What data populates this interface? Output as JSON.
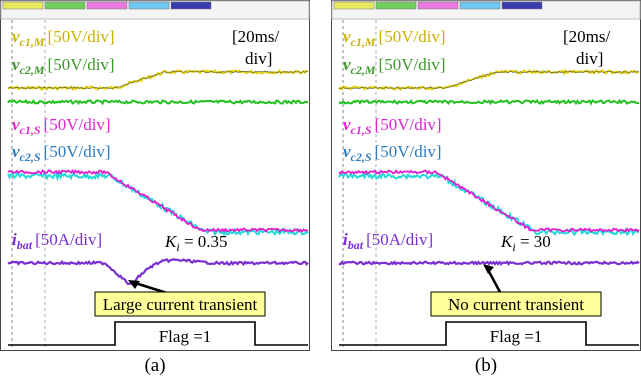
{
  "panels": [
    {
      "labels": [
        {
          "symbol": "v",
          "subscript": "c1,M",
          "scale": "[50V/div]"
        },
        {
          "symbol": "v",
          "subscript": "c2,M",
          "scale": "[50V/div]"
        },
        {
          "symbol": "v",
          "subscript": "c1,S",
          "scale": "[50V/div]"
        },
        {
          "symbol": "v",
          "subscript": "c2,S",
          "scale": "[50V/div]"
        },
        {
          "symbol": "i",
          "subscript": "bat",
          "scale": "[50A/div]"
        }
      ],
      "time_div": [
        "[20ms/",
        "div]"
      ],
      "gain": {
        "symbol": "K",
        "subscript": "i",
        "text": " = 0.35"
      },
      "callout": "Large current transient",
      "flag": "Flag =1",
      "caption": "(a)"
    },
    {
      "labels": [
        {
          "symbol": "v",
          "subscript": "c1,M",
          "scale": "[50V/div]"
        },
        {
          "symbol": "v",
          "subscript": "c2,M",
          "scale": "[50V/div]"
        },
        {
          "symbol": "v",
          "subscript": "c1,S",
          "scale": "[50V/div]"
        },
        {
          "symbol": "v",
          "subscript": "c2,S",
          "scale": "[50V/div]"
        },
        {
          "symbol": "i",
          "subscript": "bat",
          "scale": "[50A/div]"
        }
      ],
      "time_div": [
        "[20ms/",
        "div]"
      ],
      "gain": {
        "symbol": "K",
        "subscript": "i",
        "text": " = 30"
      },
      "callout": "No current transient",
      "flag": "Flag =1",
      "caption": "(b)"
    }
  ]
}
